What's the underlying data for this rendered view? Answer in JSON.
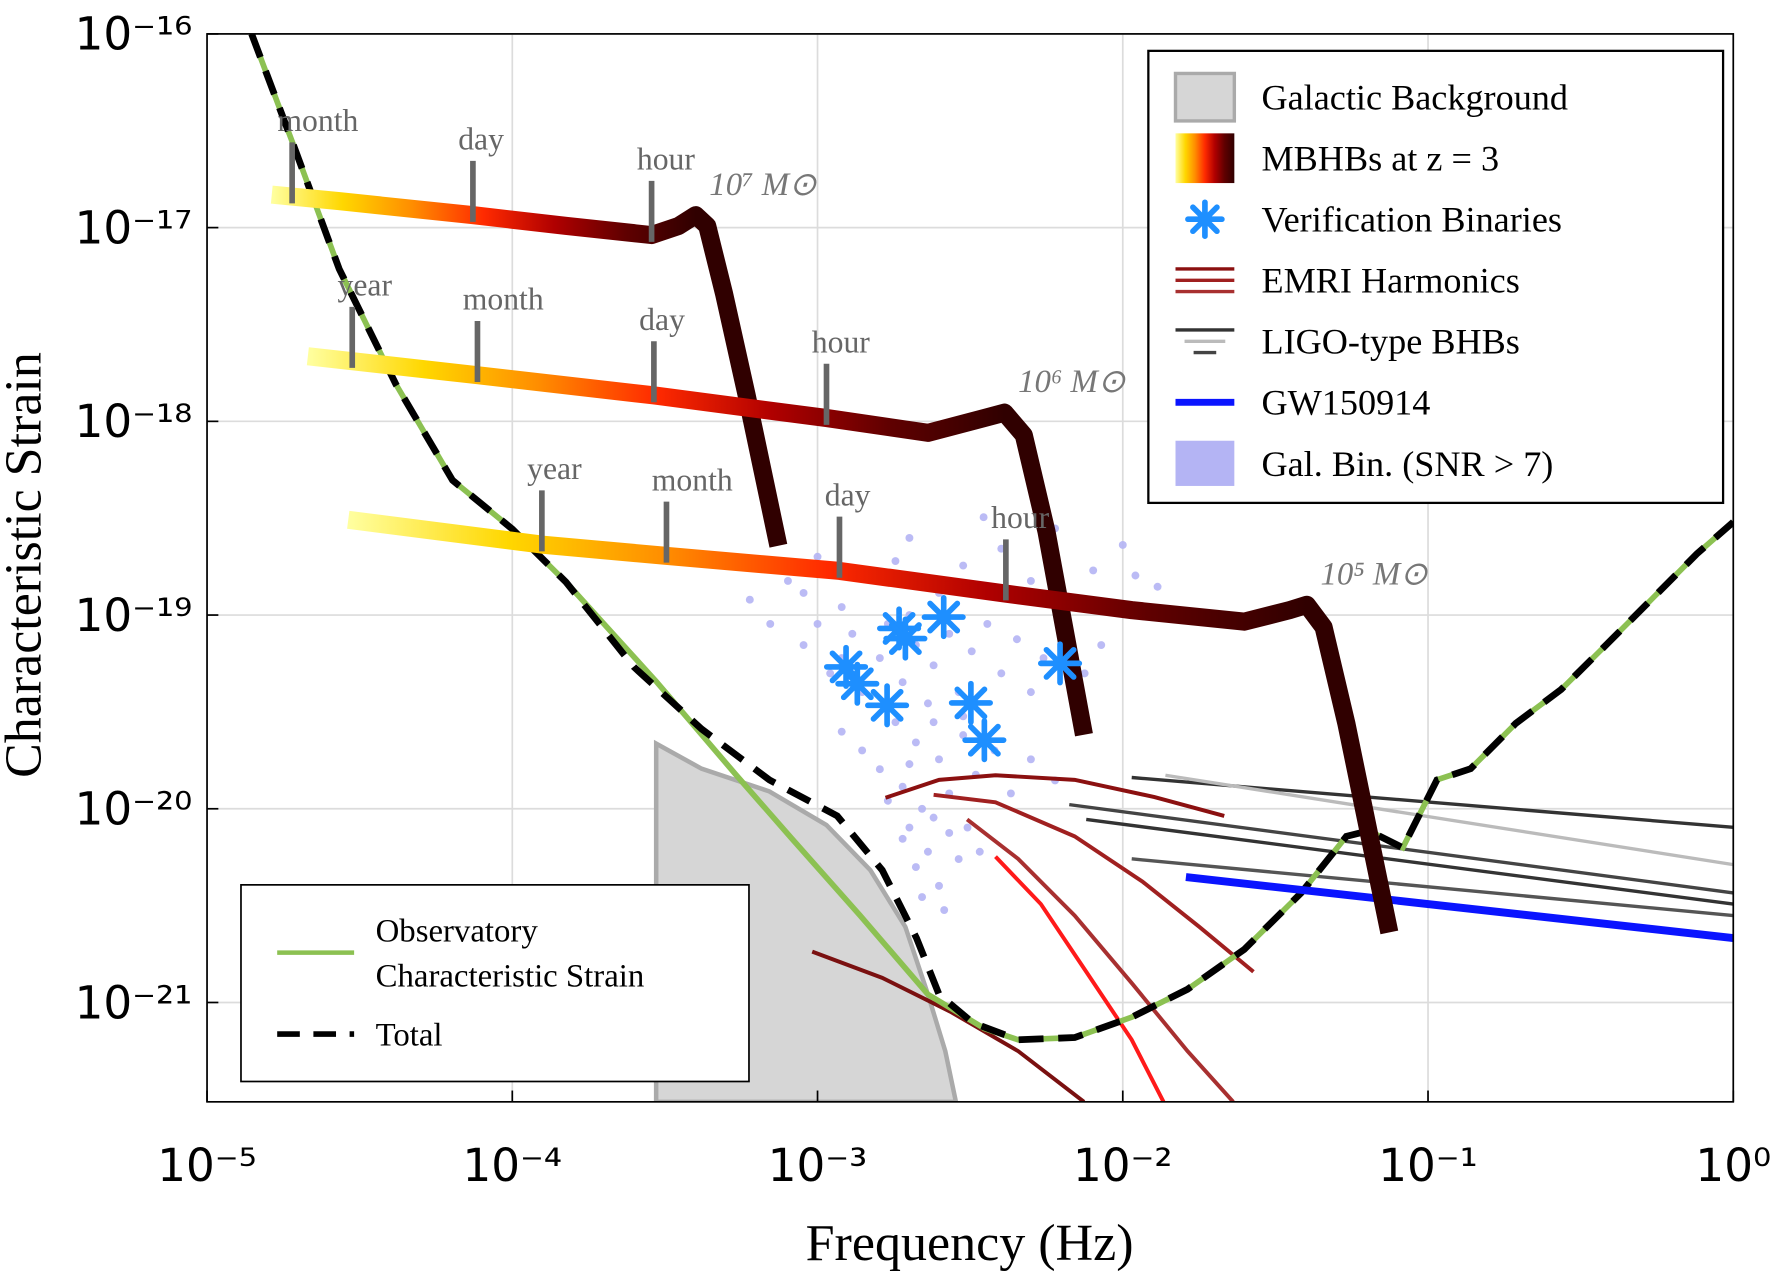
{
  "chart_data": {
    "type": "line",
    "xlabel": "Frequency (Hz)",
    "ylabel": "Characteristic Strain",
    "log_x": true,
    "log_y": true,
    "grid": true,
    "xlim": [
      1e-05,
      1
    ],
    "ylim": [
      3.07e-22,
      1e-16
    ],
    "xticks": [
      {
        "value": 1e-05,
        "label": "10⁻⁵"
      },
      {
        "value": 0.0001,
        "label": "10⁻⁴"
      },
      {
        "value": 0.001,
        "label": "10⁻³"
      },
      {
        "value": 0.01,
        "label": "10⁻²"
      },
      {
        "value": 0.1,
        "label": "10⁻¹"
      },
      {
        "value": 1,
        "label": "10⁰"
      }
    ],
    "yticks": [
      {
        "value": 1e-21,
        "label": "10⁻²¹"
      },
      {
        "value": 1e-20,
        "label": "10⁻²⁰"
      },
      {
        "value": 1e-19,
        "label": "10⁻¹⁹"
      },
      {
        "value": 1e-18,
        "label": "10⁻¹⁸"
      },
      {
        "value": 1e-17,
        "label": "10⁻¹⁷"
      },
      {
        "value": 1e-16,
        "label": "10⁻¹⁶"
      }
    ],
    "series": [
      {
        "name": "Observatory Characteristic Strain",
        "kind": "line",
        "color": "#8cc152",
        "width": 5,
        "legend": "lower left",
        "x": [
          1.4e-05,
          1.93e-05,
          2.71e-05,
          4.16e-05,
          6.37e-05,
          0.0001,
          0.00015,
          0.000296,
          0.000538,
          0.000824,
          0.00138,
          0.0023,
          0.00352,
          0.00454,
          0.00696,
          0.0107,
          0.0163,
          0.025,
          0.0384,
          0.054,
          0.064,
          0.0827,
          0.107,
          0.138,
          0.194,
          0.273,
          0.385,
          0.541,
          0.76,
          1
        ],
        "y": [
          1e-16,
          2.61e-17,
          6.12e-18,
          1.55e-18,
          4.96e-19,
          2.78e-19,
          1.48e-19,
          4.54e-20,
          1.51e-20,
          7.01e-21,
          2.81e-21,
          1.1e-21,
          7.34e-22,
          6.42e-22,
          6.59e-22,
          8.4e-22,
          1.17e-21,
          1.88e-21,
          3.68e-21,
          7.2e-21,
          7.7e-21,
          6.3e-21,
          1.41e-20,
          1.61e-20,
          2.76e-20,
          4.13e-20,
          7.07e-20,
          1.21e-19,
          2.07e-19,
          3.02e-19
        ]
      },
      {
        "name": "Total",
        "kind": "line",
        "color": "#000000",
        "width": 6,
        "dash": true,
        "legend": "lower left",
        "x": [
          1.4e-05,
          1.93e-05,
          2.71e-05,
          4.16e-05,
          6.37e-05,
          0.0001,
          0.00015,
          0.00025,
          0.000417,
          0.000695,
          0.00116,
          0.00163,
          0.00211,
          0.0025,
          0.00323,
          0.00454,
          0.00696,
          0.0107,
          0.0163,
          0.025,
          0.0384,
          0.054,
          0.064,
          0.0827,
          0.107,
          0.138,
          0.194,
          0.273,
          0.385,
          0.541,
          0.76,
          1
        ],
        "y": [
          1e-16,
          2.61e-17,
          6.12e-18,
          1.55e-18,
          4.96e-19,
          2.78e-19,
          1.48e-19,
          5.4e-20,
          2.58e-20,
          1.41e-20,
          9.18e-21,
          4.82e-21,
          2.15e-21,
          1.1e-21,
          7.85e-22,
          6.42e-22,
          6.59e-22,
          8.4e-22,
          1.17e-21,
          1.88e-21,
          3.68e-21,
          7.2e-21,
          7.7e-21,
          6.3e-21,
          1.41e-20,
          1.61e-20,
          2.76e-20,
          4.13e-20,
          7.07e-20,
          1.21e-19,
          2.07e-19,
          3.02e-19
        ]
      },
      {
        "name": "Galactic Background",
        "kind": "area",
        "color": "#d6d6d6",
        "edge": "#aaaaaa",
        "legend": "upper right",
        "x": [
          0.000296,
          0.000417,
          0.000695,
          0.00107,
          0.00149,
          0.00194,
          0.0023,
          0.00262,
          0.00284
        ],
        "y": [
          2.17e-20,
          1.61e-20,
          1.23e-20,
          8.24e-21,
          4.82e-21,
          2.46e-21,
          1.1e-21,
          5.61e-22,
          3.07e-22
        ]
      },
      {
        "name": "MBHBs at z = 3",
        "kind": "track",
        "legend": "upper right",
        "colormap": [
          "#ffffa0",
          "#ffd700",
          "#ff8c00",
          "#ff2a00",
          "#b00000",
          "#600000",
          "#300000"
        ],
        "tracks": [
          {
            "label": "10⁷ M⊙",
            "x": [
              1.63e-05,
              2.71e-05,
              7.43e-05,
              0.00015,
              0.000286,
              0.000351,
              0.000399,
              0.000435,
              0.000494,
              0.000586,
              0.000744
            ],
            "y": [
              1.48e-17,
              1.37e-17,
              1.16e-17,
              1.02e-17,
              9.15e-18,
              1.02e-17,
              1.16e-17,
              1.02e-17,
              4.55e-18,
              1.36e-18,
              2.28e-19
            ],
            "markers": [
              {
                "label": "month",
                "x": 1.9e-05
              },
              {
                "label": "day",
                "x": 7.43e-05
              },
              {
                "label": "hour",
                "x": 0.000286
              }
            ]
          },
          {
            "label": "10⁶ M⊙",
            "x": [
              2.14e-05,
              7.69e-05,
              0.000291,
              0.00107,
              0.0023,
              0.00352,
              0.0041,
              0.00474,
              0.00562,
              0.00746
            ],
            "y": [
              2.17e-18,
              1.73e-18,
              1.36e-18,
              1.04e-18,
              8.72e-19,
              1.04e-18,
              1.11e-18,
              8.49e-19,
              2.71e-19,
              2.41e-20
            ],
            "markers": [
              {
                "label": "year",
                "x": 2.99e-05
              },
              {
                "label": "month",
                "x": 7.69e-05
              },
              {
                "label": "day",
                "x": 0.000291
              },
              {
                "label": "hour",
                "x": 0.00107
              }
            ]
          },
          {
            "label": "10⁵ M⊙",
            "x": [
              2.9e-05,
              0.000125,
              0.00032,
              0.00118,
              0.00414,
              0.0107,
              0.025,
              0.0352,
              0.0401,
              0.0455,
              0.054,
              0.0747
            ],
            "y": [
              3.1e-19,
              2.31e-19,
              2.02e-19,
              1.69e-19,
              1.29e-19,
              1.06e-19,
              9.25e-20,
              1.06e-19,
              1.13e-19,
              8.65e-20,
              2.76e-20,
              2.3e-21
            ],
            "markers": [
              {
                "label": "year",
                "x": 0.000125
              },
              {
                "label": "month",
                "x": 0.00032
              },
              {
                "label": "day",
                "x": 0.00118
              },
              {
                "label": "hour",
                "x": 0.00414
              }
            ]
          }
        ]
      },
      {
        "name": "Verification Binaries",
        "kind": "points",
        "color": "#1e8fff",
        "legend": "upper right",
        "x": [
          0.00124,
          0.00135,
          0.00169,
          0.00185,
          0.00194,
          0.00259,
          0.00318,
          0.00352,
          0.00623
        ],
        "y": [
          5.4e-20,
          4.42e-20,
          3.42e-20,
          8.53e-20,
          7.56e-20,
          9.76e-20,
          3.52e-20,
          2.26e-20,
          5.63e-20
        ]
      },
      {
        "name": "EMRI Harmonics",
        "kind": "lines",
        "legend": "upper right",
        "width": 3.5,
        "lines": [
          {
            "color": "#8b1010",
            "x": [
              0.00167,
              0.0025,
              0.00383,
              0.00696,
              0.0127,
              0.0215
            ],
            "y": [
              1.14e-20,
              1.41e-20,
              1.49e-20,
              1.41e-20,
              1.15e-20,
              9.18e-21
            ]
          },
          {
            "color": "#a02020",
            "x": [
              0.0024,
              0.00383,
              0.00696,
              0.0116,
              0.0178,
              0.0268
            ],
            "y": [
              1.18e-20,
              1.08e-20,
              7.2e-21,
              4.21e-21,
              2.46e-21,
              1.44e-21
            ]
          },
          {
            "color": "#a83030",
            "x": [
              0.00309,
              0.00454,
              0.00696,
              0.0107,
              0.0163,
              0.023
            ],
            "y": [
              8.81e-21,
              5.51e-21,
              2.81e-21,
              1.26e-21,
              5.61e-22,
              3.07e-22
            ]
          },
          {
            "color": "#ff1a1a",
            "x": [
              0.00383,
              0.00539,
              0.00759,
              0.0107,
              0.0136
            ],
            "y": [
              5.66e-21,
              3.22e-21,
              1.44e-21,
              6.42e-22,
              3.07e-22
            ]
          },
          {
            "color": "#7a1010",
            "x": [
              0.000961,
              0.00163,
              0.00272,
              0.00454,
              0.00746
            ],
            "y": [
              1.83e-21,
              1.34e-21,
              8.98e-22,
              5.61e-22,
              3.07e-22
            ]
          }
        ]
      },
      {
        "name": "LIGO-type BHBs",
        "kind": "lines",
        "legend": "upper right",
        "width": 3,
        "lines": [
          {
            "color": "#333333",
            "x": [
              0.0107,
              1
            ],
            "y": [
              1.45e-20,
              8.02e-21
            ]
          },
          {
            "color": "#bbbbbb",
            "x": [
              0.0138,
              1
            ],
            "y": [
              1.49e-20,
              5.15e-21
            ]
          },
          {
            "color": "#444444",
            "x": [
              0.00668,
              1
            ],
            "y": [
              1.05e-20,
              3.68e-21
            ]
          },
          {
            "color": "#333333",
            "x": [
              0.00759,
              1
            ],
            "y": [
              8.81e-21,
              3.22e-21
            ]
          },
          {
            "color": "#555555",
            "x": [
              0.0107,
              1
            ],
            "y": [
              5.51e-21,
              2.81e-21
            ]
          }
        ]
      },
      {
        "name": "GW150914",
        "kind": "line",
        "color": "#0a14ff",
        "width": 7,
        "legend": "upper right",
        "x": [
          0.0161,
          1
        ],
        "y": [
          4.44e-21,
          2.15e-21
        ]
      },
      {
        "name": "Gal. Bin. (SNR > 7)",
        "kind": "scatter",
        "color": "#b4b4f4",
        "legend": "upper right",
        "x": [
          0.0006,
          0.0008,
          0.001,
          0.0012,
          0.0015,
          0.002,
          0.0025,
          0.003,
          0.004,
          0.005,
          0.006,
          0.008,
          0.01,
          0.013,
          0.0007,
          0.0009,
          0.0035,
          0.0018,
          0.007,
          0.011,
          0.0009,
          0.0011,
          0.0013,
          0.0014,
          0.0016,
          0.0017,
          0.0019,
          0.0021,
          0.0023,
          0.0024,
          0.0027,
          0.0029,
          0.0032,
          0.0036,
          0.004,
          0.0045,
          0.005,
          0.0055,
          0.0065,
          0.0075,
          0.0085,
          0.001,
          0.0012,
          0.003,
          0.002,
          0.0012,
          0.0014,
          0.0016,
          0.0018,
          0.0019,
          0.0021,
          0.0022,
          0.0025,
          0.0027,
          0.003,
          0.0033,
          0.0038,
          0.0043,
          0.005,
          0.006,
          0.002,
          0.0024,
          0.0017,
          0.0019,
          0.0021,
          0.0023,
          0.0025,
          0.0027,
          0.0029,
          0.0031,
          0.0022,
          0.0026,
          0.0034,
          0.002,
          0.0024
        ],
        "y": [
          1.2e-19,
          1.5e-19,
          2e-19,
          1.1e-19,
          1.6e-19,
          2.5e-19,
          1.3e-19,
          1.8e-19,
          2.2e-19,
          1.5e-19,
          2.8e-19,
          1.7e-19,
          2.3e-19,
          1.4e-19,
          9e-20,
          1.3e-19,
          3.2e-19,
          1.9e-19,
          1.2e-19,
          1.6e-19,
          7e-20,
          5e-20,
          8e-20,
          4e-20,
          6e-20,
          9e-20,
          4.5e-20,
          7e-20,
          3.5e-20,
          5.5e-20,
          8e-20,
          4e-20,
          6.5e-20,
          9e-20,
          5e-20,
          7.5e-20,
          4e-20,
          6e-20,
          8e-20,
          5e-20,
          7e-20,
          9e-20,
          6e-20,
          3e-20,
          1e-19,
          2.5e-20,
          2e-20,
          1.6e-20,
          2.8e-20,
          1.3e-20,
          2.2e-20,
          1e-20,
          1.8e-20,
          1.2e-20,
          2.4e-20,
          1.5e-20,
          2e-20,
          1.2e-20,
          1.8e-20,
          1.4e-20,
          1.7e-20,
          2.8e-20,
          1.1e-20,
          7e-21,
          5e-21,
          6e-21,
          4e-21,
          7.5e-21,
          5.5e-21,
          8e-21,
          3.5e-21,
          3e-21,
          6e-21,
          8e-21,
          9e-21
        ]
      }
    ]
  }
}
